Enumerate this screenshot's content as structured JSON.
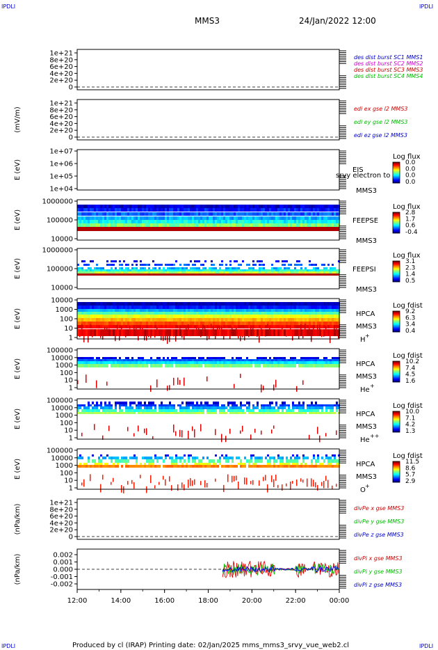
{
  "corner_label": "IPDLI",
  "header": {
    "mission": "MMS3",
    "datetime": "24/Jan/2022 12:00"
  },
  "footer": {
    "text": "Produced by cl (IRAP)   Printing date: 02/Jan/2025   mms_mms3_srvy_vue_web2.cl"
  },
  "time_axis": {
    "labels": [
      "12:00",
      "14:00",
      "16:00",
      "18:00",
      "20:00",
      "22:00",
      "00:00"
    ]
  },
  "chart_data": [
    {
      "type": "line",
      "ylabel": "",
      "yticks": [
        "1e+21",
        "8e+20",
        "6e+20",
        "4e+20",
        "2e+20",
        "0"
      ],
      "legend": [
        {
          "text": "des dist burst SC1 MMS1",
          "color": "#0000cc"
        },
        {
          "text": "des dist burst SC2 MMS2",
          "color": "#cc00cc"
        },
        {
          "text": "des dist burst SC3 MMS3",
          "color": "#cc0000"
        },
        {
          "text": "des dist burst SC4 MMS4",
          "color": "#00bb00"
        }
      ]
    },
    {
      "type": "line",
      "ylabel": "(mV/m)",
      "yticks": [
        "1e+21",
        "8e+20",
        "6e+20",
        "4e+20",
        "2e+20",
        "0"
      ],
      "legend": [
        {
          "text": "edi ex gse l2 MMS3",
          "color": "#cc0000"
        },
        {
          "text": "edi ey gse l2 MMS3",
          "color": "#00bb00"
        },
        {
          "text": "edi ez gse l2 MMS3",
          "color": "#0000cc"
        }
      ]
    },
    {
      "type": "heatmap",
      "ylabel": "E (eV)",
      "yticks": [
        "1e+07",
        "1e+06",
        "1e+05",
        "1e+04"
      ],
      "labels": [
        "EIS",
        "MMS3"
      ],
      "overlay": "srvy electron to",
      "cbar_title": "Log flux",
      "cbar_ticks": [
        "0.0",
        "0.0",
        "0.0",
        "0.0"
      ]
    },
    {
      "type": "heatmap",
      "ylabel": "E (eV)",
      "yticks": [
        "1000000",
        "100000",
        "10000"
      ],
      "labels": [
        "FEEPSE",
        "MMS3"
      ],
      "cbar_title": "Log flux",
      "cbar_ticks": [
        "2.8",
        "1.7",
        "0.6",
        "-0.4"
      ]
    },
    {
      "type": "heatmap",
      "ylabel": "E (eV)",
      "yticks": [
        "1000000",
        "100000",
        "10000"
      ],
      "labels": [
        "FEEPSI",
        "MMS3"
      ],
      "cbar_title": "Log flux",
      "cbar_ticks": [
        "3.1",
        "2.3",
        "1.4",
        "0.5"
      ]
    },
    {
      "type": "heatmap",
      "ylabel": "E (eV)",
      "yticks": [
        "10000",
        "1000",
        "100",
        "10",
        "1"
      ],
      "labels": [
        "HPCA",
        "MMS3"
      ],
      "species": "H",
      "charge": "+",
      "cbar_title": "Log fdist",
      "cbar_ticks": [
        "9.2",
        "6.3",
        "3.4",
        "0.4"
      ]
    },
    {
      "type": "heatmap",
      "ylabel": "E (eV)",
      "yticks": [
        "100000",
        "10000",
        "1000",
        "100",
        "10",
        "1"
      ],
      "labels": [
        "HPCA",
        "MMS3"
      ],
      "species": "He",
      "charge": "+",
      "cbar_title": "Log fdist",
      "cbar_ticks": [
        "10.2",
        "7.4",
        "4.5",
        "1.6"
      ]
    },
    {
      "type": "heatmap",
      "ylabel": "E (eV)",
      "yticks": [
        "100000",
        "10000",
        "1000",
        "100",
        "10",
        "1"
      ],
      "labels": [
        "HPCA",
        "MMS3"
      ],
      "species": "He",
      "charge": "++",
      "cbar_title": "Log fdist",
      "cbar_ticks": [
        "10.0",
        "7.1",
        "4.2",
        "1.3"
      ]
    },
    {
      "type": "heatmap",
      "ylabel": "E (eV)",
      "yticks": [
        "100000",
        "10000",
        "1000",
        "100",
        "10",
        "1"
      ],
      "labels": [
        "HPCA",
        "MMS3"
      ],
      "species": "O",
      "charge": "+",
      "cbar_title": "Log fdist",
      "cbar_ticks": [
        "11.5",
        "8.6",
        "5.7",
        "2.9"
      ]
    },
    {
      "type": "line",
      "ylabel": "(nPa/km)",
      "yticks": [
        "1e+21",
        "8e+20",
        "6e+20",
        "4e+20",
        "2e+20",
        "0"
      ],
      "legend": [
        {
          "text": "divPe x gse MMS3",
          "color": "#cc0000"
        },
        {
          "text": "divPe y gse MMS3",
          "color": "#00bb00"
        },
        {
          "text": "divPe z gse MMS3",
          "color": "#0000cc"
        }
      ]
    },
    {
      "type": "line",
      "ylabel": "(nPa/km)",
      "yticks": [
        "0.002",
        "0.001",
        "0.000",
        "-0.001",
        "-0.002"
      ],
      "legend": [
        {
          "text": "divPi x gse MMS3",
          "color": "#cc0000"
        },
        {
          "text": "divPi y gse MMS3",
          "color": "#00bb00"
        },
        {
          "text": "divPi z gse MMS3",
          "color": "#0000cc"
        }
      ]
    }
  ]
}
